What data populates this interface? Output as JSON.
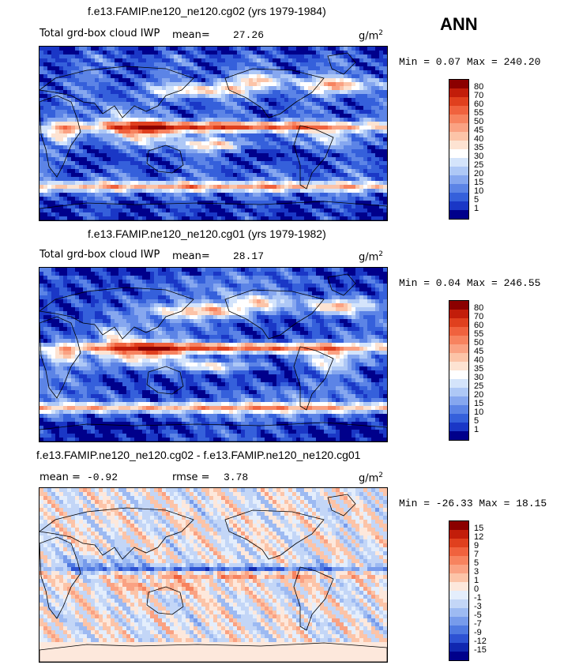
{
  "season": "ANN",
  "panels": [
    {
      "title": "f.e13.FAMIP.ne120_ne120.cg02 (yrs 1979-1984)",
      "left_label": "Total grd-box cloud IWP",
      "mean_label": "mean=",
      "mean_value": "27.26",
      "units": "g/m",
      "units_sup": "2",
      "minmax": "Min =   0.07 Max = 240.20",
      "colorbar": {
        "ticks": [
          "80",
          "70",
          "60",
          "55",
          "50",
          "45",
          "40",
          "35",
          "30",
          "25",
          "20",
          "15",
          "10",
          "5",
          "1"
        ],
        "colors": [
          "#8b0000",
          "#c21d0a",
          "#e0401e",
          "#f0623e",
          "#f7835f",
          "#faa283",
          "#fcc4a8",
          "#fde3d2",
          "#ffffff",
          "#d4e4fb",
          "#aec8f6",
          "#86a7ef",
          "#5c84e6",
          "#3560db",
          "#1a37c6",
          "#00008b"
        ]
      },
      "field": "iwp1"
    },
    {
      "title": "f.e13.FAMIP.ne120_ne120.cg01 (yrs 1979-1982)",
      "left_label": "Total grd-box cloud IWP",
      "mean_label": "mean=",
      "mean_value": "28.17",
      "units": "g/m",
      "units_sup": "2",
      "minmax": "Min =   0.04 Max = 246.55",
      "colorbar": {
        "ticks": [
          "80",
          "70",
          "60",
          "55",
          "50",
          "45",
          "40",
          "35",
          "30",
          "25",
          "20",
          "15",
          "10",
          "5",
          "1"
        ],
        "colors": [
          "#8b0000",
          "#c21d0a",
          "#e0401e",
          "#f0623e",
          "#f7835f",
          "#faa283",
          "#fcc4a8",
          "#fde3d2",
          "#ffffff",
          "#d4e4fb",
          "#aec8f6",
          "#86a7ef",
          "#5c84e6",
          "#3560db",
          "#1a37c6",
          "#00008b"
        ]
      },
      "field": "iwp2"
    },
    {
      "title": "f.e13.FAMIP.ne120_ne120.cg02 - f.e13.FAMIP.ne120_ne120.cg01",
      "mean_label": "mean =",
      "mean_value": "-0.92",
      "rmse_label": "rmse =",
      "rmse_value": "3.78",
      "units": "g/m",
      "units_sup": "2",
      "minmax": "Min = -26.33 Max =  18.15",
      "colorbar": {
        "ticks": [
          "15",
          "12",
          "9",
          "7",
          "5",
          "3",
          "1",
          "0",
          "-1",
          "-3",
          "-5",
          "-7",
          "-9",
          "-12",
          "-15"
        ],
        "colors": [
          "#8b0000",
          "#c21d0a",
          "#e0401e",
          "#f0623e",
          "#f7835f",
          "#faa283",
          "#fcc4a8",
          "#fde8dc",
          "#e4eefc",
          "#c3d6f7",
          "#9dbaf2",
          "#779beb",
          "#4f79e1",
          "#2d52d3",
          "#1027b0",
          "#00008b"
        ]
      },
      "field": "diff"
    }
  ]
}
